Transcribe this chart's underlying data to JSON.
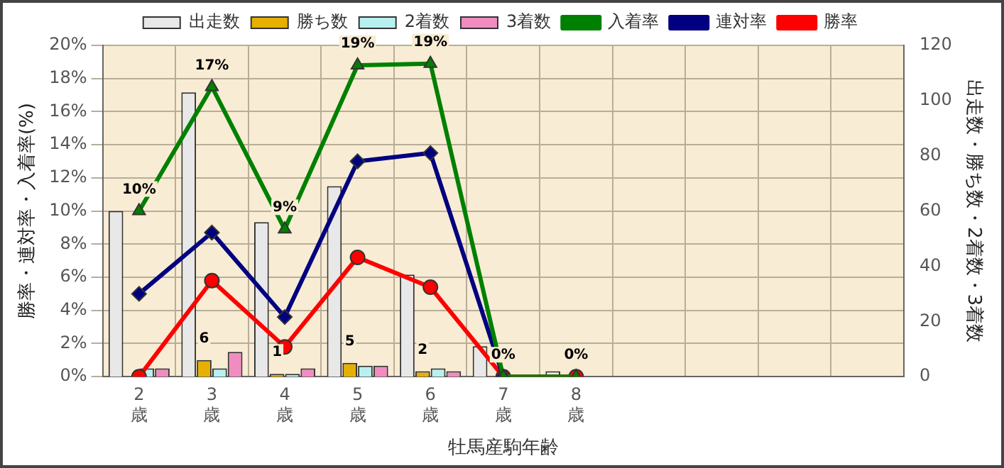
{
  "chart_data": {
    "type": "bar",
    "xlabel": "牡馬産駒年齢",
    "ylabel": "勝率・連対率・入着率(%)",
    "y2label": "出走数・勝ち数・2着数・3着数",
    "categories": [
      "2歳",
      "3歳",
      "4歳",
      "5歳",
      "6歳",
      "7歳",
      "8歳",
      null,
      null,
      null,
      null
    ],
    "series": [
      {
        "name": "出走数",
        "axis": "y2",
        "color": "#e8e8e8",
        "values": [
          60,
          103,
          56,
          69,
          37,
          11,
          2,
          null,
          null,
          null,
          null
        ]
      },
      {
        "name": "勝ち数",
        "axis": "y2",
        "color": "#e6b000",
        "values": [
          0,
          6,
          1,
          5,
          2,
          0,
          0,
          null,
          null,
          null,
          null
        ],
        "value_labels": [
          null,
          "6",
          "1",
          "5",
          "2",
          null,
          null,
          null,
          null,
          null,
          null
        ]
      },
      {
        "name": "2着数",
        "axis": "y2",
        "color": "#b8f0f0",
        "values": [
          3,
          3,
          1,
          4,
          3,
          0,
          0,
          null,
          null,
          null,
          null
        ]
      },
      {
        "name": "3着数",
        "axis": "y2",
        "color": "#f08cc0",
        "values": [
          3,
          9,
          3,
          4,
          2,
          0,
          0,
          null,
          null,
          null,
          null
        ]
      },
      {
        "name": "入着率",
        "type": "line",
        "color": "#008000",
        "marker": "triangle",
        "values": [
          10,
          17.5,
          8.9,
          18.8,
          18.9,
          0,
          0,
          null,
          null,
          null,
          null
        ],
        "value_labels": [
          "10%",
          "17%",
          "9%",
          "19%",
          "19%",
          "0%",
          "0%",
          null,
          null,
          null,
          null
        ]
      },
      {
        "name": "連対率",
        "type": "line",
        "color": "#000080",
        "marker": "diamond",
        "values": [
          5,
          8.7,
          3.6,
          13.0,
          13.5,
          0,
          null,
          null,
          null,
          null,
          null
        ]
      },
      {
        "name": "勝率",
        "type": "line",
        "color": "#ff0000",
        "marker": "circle",
        "values": [
          0,
          5.8,
          1.8,
          7.2,
          5.4,
          0,
          0,
          null,
          null,
          null,
          null
        ]
      }
    ],
    "ylim": [
      0,
      20
    ],
    "yticks": [
      {
        "value": 0,
        "label": "0%"
      },
      {
        "value": 2,
        "label": "2%"
      },
      {
        "value": 4,
        "label": "4%"
      },
      {
        "value": 6,
        "label": "6%"
      },
      {
        "value": 8,
        "label": "8%"
      },
      {
        "value": 10,
        "label": "10%"
      },
      {
        "value": 12,
        "label": "12%"
      },
      {
        "value": 14,
        "label": "14%"
      },
      {
        "value": 16,
        "label": "16%"
      },
      {
        "value": 18,
        "label": "18%"
      },
      {
        "value": 20,
        "label": "20%"
      }
    ],
    "y2lim": [
      0,
      120
    ],
    "y2ticks": [
      0,
      20,
      40,
      60,
      80,
      100,
      120
    ],
    "grid": true,
    "legend": "top"
  }
}
